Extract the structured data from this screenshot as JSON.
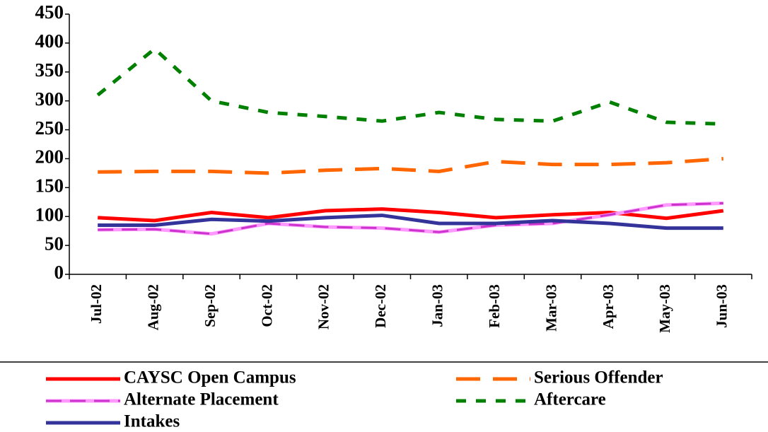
{
  "chart_data": {
    "type": "line",
    "categories": [
      "Jul-02",
      "Aug-02",
      "Sep-02",
      "Oct-02",
      "Nov-02",
      "Dec-02",
      "Jan-03",
      "Feb-03",
      "Mar-03",
      "Apr-03",
      "May-03",
      "Jun-03"
    ],
    "series": [
      {
        "name": "CAYSC Open Campus",
        "color": "#ff0000",
        "style": "solid",
        "values": [
          98,
          93,
          107,
          98,
          110,
          113,
          107,
          98,
          103,
          107,
          97,
          110
        ]
      },
      {
        "name": "Serious Offender",
        "color": "#ff6600",
        "style": "dashed",
        "values": [
          177,
          178,
          178,
          175,
          180,
          183,
          178,
          195,
          190,
          190,
          193,
          200
        ]
      },
      {
        "name": "Alternate Placement",
        "color": "#ff99ff",
        "dash_color": "#cc33cc",
        "style": "solid",
        "values": [
          77,
          78,
          70,
          88,
          82,
          80,
          73,
          85,
          88,
          103,
          120,
          123
        ]
      },
      {
        "name": "Aftercare",
        "color": "#008000",
        "style": "dotted",
        "values": [
          310,
          390,
          300,
          280,
          273,
          265,
          280,
          268,
          265,
          298,
          263,
          260
        ]
      },
      {
        "name": "Intakes",
        "color": "#333399",
        "style": "solid",
        "values": [
          85,
          85,
          95,
          92,
          98,
          102,
          88,
          88,
          93,
          88,
          80,
          80
        ]
      }
    ],
    "ylim": [
      0,
      450
    ],
    "yticks": [
      0,
      50,
      100,
      150,
      200,
      250,
      300,
      350,
      400,
      450
    ]
  }
}
